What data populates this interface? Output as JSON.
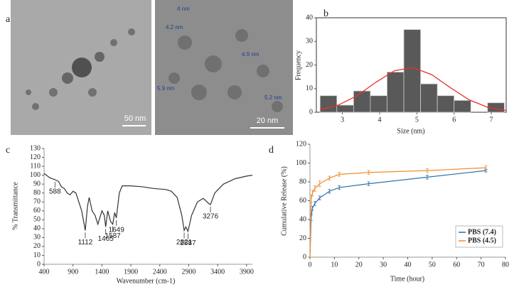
{
  "panel_a": {
    "label": "a",
    "images": [
      {
        "scale_bar": "50 nm"
      },
      {
        "scale_bar": "20 nm",
        "annotations": [
          "4 nm",
          "4.2 nm",
          "4.9 nm",
          "5.9 nm",
          "5.2 nm"
        ]
      }
    ]
  },
  "chart_data": [
    {
      "type": "histogram",
      "label": "b",
      "x_label": "Size (nm)",
      "y_label": "Frequency",
      "bins": [
        2.4,
        2.85,
        3.3,
        3.75,
        4.2,
        4.65,
        5.1,
        5.55,
        6.0,
        6.45,
        6.9,
        7.35
      ],
      "values": [
        7,
        3,
        9,
        7,
        17,
        35,
        12,
        7,
        5,
        0,
        4
      ],
      "color": "#595959",
      "fit": {
        "color": "#e8322e",
        "x": [
          2.4,
          2.9,
          3.4,
          3.9,
          4.4,
          4.9,
          5.4,
          5.9,
          6.4,
          6.9,
          7.4
        ],
        "values": [
          1.1,
          3.1,
          7.1,
          12.7,
          17.6,
          18.9,
          15.9,
          10.4,
          5.3,
          2.1,
          0.7
        ]
      },
      "xlim": [
        2.3,
        7.4
      ],
      "xticks": [
        3,
        4,
        5,
        6,
        7
      ],
      "ylim": [
        0,
        40
      ],
      "yticks": [
        0,
        10,
        20,
        30,
        40
      ],
      "frame": true
    },
    {
      "type": "line",
      "label": "c",
      "x_label": "Wavenumber (cm-1)",
      "y_label": "% Transmittance",
      "color": "#333333",
      "x": [
        400,
        500,
        588,
        650,
        700,
        750,
        800,
        850,
        900,
        950,
        1000,
        1050,
        1112,
        1150,
        1180,
        1230,
        1280,
        1330,
        1400,
        1440,
        1465,
        1500,
        1550,
        1587,
        1620,
        1649,
        1700,
        1750,
        1900,
        2100,
        2300,
        2500,
        2600,
        2700,
        2780,
        2821,
        2850,
        2887,
        2950,
        3050,
        3150,
        3250,
        3276,
        3350,
        3500,
        3700,
        3900,
        4000
      ],
      "values": [
        102,
        97,
        95,
        93,
        87,
        85,
        80,
        78,
        82,
        80,
        70,
        60,
        38,
        65,
        75,
        60,
        55,
        45,
        60,
        55,
        42,
        60,
        48,
        45,
        58,
        52,
        80,
        88,
        88,
        87,
        85,
        84,
        82,
        75,
        55,
        38,
        42,
        37,
        55,
        70,
        74,
        68,
        67,
        80,
        90,
        96,
        99,
        100
      ],
      "peaks": [
        588,
        1112,
        1465,
        1587,
        1649,
        2821,
        2887,
        3276
      ],
      "xlim": [
        400,
        4000
      ],
      "xticks": [
        400,
        900,
        1400,
        1900,
        2400,
        2900,
        3400,
        3900
      ],
      "ylim": [
        0,
        130
      ],
      "yticks": [
        0,
        10,
        20,
        30,
        40,
        50,
        60,
        70,
        80,
        90,
        100,
        110,
        120,
        130
      ],
      "frame": false
    },
    {
      "type": "line",
      "label": "d",
      "x_label": "Time (hour)",
      "y_label": "Cumulative Release (%)",
      "legend": "lower right",
      "x": [
        0,
        0.5,
        1,
        2,
        4,
        8,
        12,
        24,
        48,
        72
      ],
      "series": [
        {
          "name": "PBS (7.4)",
          "color": "#2e6fa7",
          "values": [
            0,
            42,
            52,
            57,
            63,
            70,
            74,
            78,
            85,
            92
          ],
          "errors": [
            0,
            3,
            2,
            2,
            2,
            2,
            2,
            2,
            2,
            1.5
          ]
        },
        {
          "name": "PBS (4.5)",
          "color": "#f28a30",
          "values": [
            0,
            62,
            68,
            73,
            78,
            84,
            88,
            90,
            92,
            95
          ],
          "errors": [
            0,
            4,
            3,
            3,
            3,
            2,
            2,
            2,
            2,
            2
          ]
        }
      ],
      "xlim": [
        0,
        80
      ],
      "xticks": [
        0,
        10,
        20,
        30,
        40,
        50,
        60,
        70,
        80
      ],
      "ylim": [
        0,
        120
      ],
      "yticks": [
        0,
        20,
        40,
        60,
        80,
        100,
        120
      ],
      "frame": false
    }
  ]
}
